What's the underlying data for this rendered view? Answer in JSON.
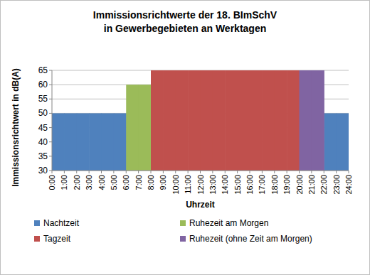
{
  "chart_data": {
    "type": "histogram",
    "title": "Immissionsrichtwerte der 18. BImSchV\nin Gewerbegebieten an Werktagen",
    "x_label": "Uhrzeit",
    "y_label": "Immissionsrichtwert in dB(A)",
    "bins": [
      0,
      1,
      2,
      3,
      4,
      5,
      6,
      7,
      8,
      9,
      10,
      11,
      12,
      13,
      14,
      15,
      16,
      17,
      18,
      19,
      20,
      21,
      22,
      23,
      24
    ],
    "series": [
      {
        "name": "Nachtzeit",
        "color": "#4f81bd",
        "values": [
          50,
          50,
          50,
          50,
          50,
          50,
          null,
          null,
          null,
          null,
          null,
          null,
          null,
          null,
          null,
          null,
          null,
          null,
          null,
          null,
          null,
          null,
          50,
          50
        ]
      },
      {
        "name": "Ruhezeit am Morgen",
        "color": "#9bbb59",
        "values": [
          null,
          null,
          null,
          null,
          null,
          null,
          60,
          60,
          null,
          null,
          null,
          null,
          null,
          null,
          null,
          null,
          null,
          null,
          null,
          null,
          null,
          null,
          null,
          null
        ]
      },
      {
        "name": "Tagzeit",
        "color": "#c0504d",
        "values": [
          null,
          null,
          null,
          null,
          null,
          null,
          null,
          null,
          65,
          65,
          65,
          65,
          65,
          65,
          65,
          65,
          65,
          65,
          65,
          65,
          null,
          null,
          null,
          null
        ]
      },
      {
        "name": "Ruhezeit (ohne Zeit am Morgen)",
        "color": "#8064a2",
        "values": [
          null,
          null,
          null,
          null,
          null,
          null,
          null,
          null,
          null,
          null,
          null,
          null,
          null,
          null,
          null,
          null,
          null,
          null,
          null,
          null,
          65,
          65,
          null,
          null
        ]
      }
    ],
    "xlim": [
      0,
      24
    ],
    "xticks": [
      {
        "value": 0,
        "label": "0:00"
      },
      {
        "value": 1,
        "label": "1:00"
      },
      {
        "value": 2,
        "label": "2:00"
      },
      {
        "value": 3,
        "label": "3:00"
      },
      {
        "value": 4,
        "label": "4:00"
      },
      {
        "value": 5,
        "label": "5:00"
      },
      {
        "value": 6,
        "label": "6:00"
      },
      {
        "value": 7,
        "label": "7:00"
      },
      {
        "value": 8,
        "label": "8:00"
      },
      {
        "value": 9,
        "label": "9:00"
      },
      {
        "value": 10,
        "label": "10:00"
      },
      {
        "value": 11,
        "label": "11:00"
      },
      {
        "value": 12,
        "label": "12:00"
      },
      {
        "value": 13,
        "label": "13:00"
      },
      {
        "value": 14,
        "label": "14:00"
      },
      {
        "value": 15,
        "label": "15:00"
      },
      {
        "value": 16,
        "label": "16:00"
      },
      {
        "value": 17,
        "label": "17:00"
      },
      {
        "value": 18,
        "label": "18:00"
      },
      {
        "value": 19,
        "label": "19:00"
      },
      {
        "value": 20,
        "label": "20:00"
      },
      {
        "value": 21,
        "label": "21:00"
      },
      {
        "value": 22,
        "label": "22:00"
      },
      {
        "value": 23,
        "label": "23:00"
      },
      {
        "value": 24,
        "label": "24:00"
      }
    ],
    "ylim": [
      30,
      65
    ],
    "yticks": [
      30,
      35,
      40,
      45,
      50,
      55,
      60,
      65
    ],
    "grid": true,
    "legend": "bottom"
  }
}
